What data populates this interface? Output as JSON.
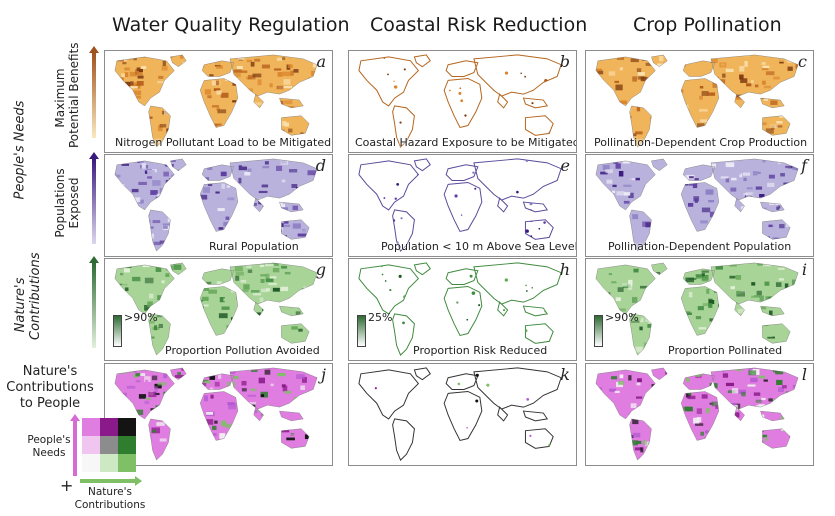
{
  "columns": [
    "Water Quality Regulation",
    "Coastal Risk Reduction",
    "Crop Pollination"
  ],
  "row_groups": {
    "peoples_needs": "People's Needs",
    "natures_contributions": "Nature's Contributions"
  },
  "row_axis_labels": {
    "row1": [
      "Maximum",
      "Potential Benefits"
    ],
    "row2": [
      "Populations",
      "Exposed"
    ]
  },
  "row_colors": {
    "row1_top": "#a0521e",
    "row1_bottom": "#fbe8c0",
    "row2_top": "#3a1a7e",
    "row2_bottom": "#dcd6ee",
    "row3_top": "#2e6b34",
    "row3_bottom": "#e2f0dc"
  },
  "panels": [
    {
      "letter": "a",
      "caption": "Nitrogen Pollutant Load to be Mitigated",
      "scheme": "orange",
      "coverage": "full"
    },
    {
      "letter": "b",
      "caption": "Coastal Hazard Exposure to be Mitigated",
      "scheme": "orange",
      "coverage": "coastal"
    },
    {
      "letter": "c",
      "caption": "Pollination-Dependent Crop Production",
      "scheme": "orange",
      "coverage": "full"
    },
    {
      "letter": "d",
      "caption": "Rural Population",
      "scheme": "purple",
      "coverage": "full"
    },
    {
      "letter": "e",
      "caption": "Population < 10 m Above Sea Level",
      "scheme": "purple",
      "coverage": "coastal"
    },
    {
      "letter": "f",
      "caption": "Pollination-Dependent Population",
      "scheme": "purple",
      "coverage": "full"
    },
    {
      "letter": "g",
      "caption": "Proportion Pollution Avoided",
      "scheme": "green",
      "coverage": "full",
      "legend": ">90%"
    },
    {
      "letter": "h",
      "caption": "Proportion Risk Reduced",
      "scheme": "green",
      "coverage": "coastal",
      "legend": "25%"
    },
    {
      "letter": "i",
      "caption": "Proportion Pollinated",
      "scheme": "green",
      "coverage": "full",
      "legend": ">90%"
    },
    {
      "letter": "j",
      "caption": "",
      "scheme": "bivariate",
      "coverage": "full"
    },
    {
      "letter": "k",
      "caption": "",
      "scheme": "bivariate",
      "coverage": "coastal"
    },
    {
      "letter": "l",
      "caption": "",
      "scheme": "bivariate",
      "coverage": "full"
    }
  ],
  "bivariate_legend": {
    "title": [
      "Nature's",
      "Contributions",
      "to People"
    ],
    "y_label": [
      "People's",
      "Needs"
    ],
    "x_label": [
      "Nature's",
      "Contributions"
    ],
    "plus": "+",
    "colors": [
      [
        "#e07de0",
        "#8a1a8a",
        "#141414"
      ],
      [
        "#f0c6f0",
        "#8c8c8c",
        "#2f7d2f"
      ],
      [
        "#f7f7f7",
        "#cde9c4",
        "#7fbf66"
      ]
    ]
  }
}
